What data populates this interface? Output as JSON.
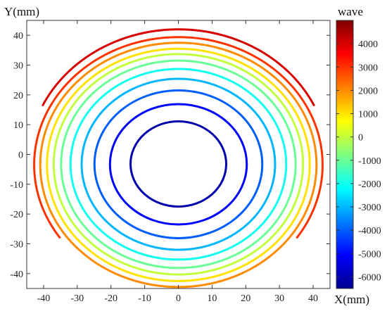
{
  "chart_data": {
    "type": "contour",
    "xlabel": "X(mm)",
    "ylabel": "Y(mm)",
    "xlim": [
      -45,
      45
    ],
    "ylim": [
      -45,
      45
    ],
    "xticks": [
      -40,
      -30,
      -20,
      -10,
      0,
      10,
      20,
      30,
      40
    ],
    "yticks": [
      40,
      30,
      20,
      10,
      0,
      -10,
      -20,
      -30,
      -40
    ],
    "grid": false,
    "colorbar": {
      "title": "wave",
      "range": [
        -6500,
        5000
      ],
      "ticks": [
        4000,
        3000,
        2000,
        1000,
        0,
        -1000,
        -2000,
        -3000,
        -4000,
        -5000,
        -6000
      ],
      "colormap": "jet"
    },
    "contours": [
      {
        "level": -6000,
        "center": [
          0,
          -3.2
        ],
        "rx": 14.2,
        "ry": 14.3,
        "arc": "full"
      },
      {
        "level": -5000,
        "center": [
          0,
          -3.3
        ],
        "rx": 20.3,
        "ry": 20.2,
        "arc": "full"
      },
      {
        "level": -4000,
        "center": [
          0,
          -3.3
        ],
        "rx": 24.9,
        "ry": 24.8,
        "arc": "full"
      },
      {
        "level": -3000,
        "center": [
          0,
          -3.3
        ],
        "rx": 28.7,
        "ry": 28.7,
        "arc": "full"
      },
      {
        "level": -2000,
        "center": [
          0,
          -3.3
        ],
        "rx": 32.0,
        "ry": 32.0,
        "arc": "full"
      },
      {
        "level": -1000,
        "center": [
          0,
          -3.3
        ],
        "rx": 34.8,
        "ry": 34.8,
        "arc": "full"
      },
      {
        "level": 0,
        "center": [
          0,
          -3.3
        ],
        "rx": 37.0,
        "ry": 37.0,
        "arc": "full"
      },
      {
        "level": 1000,
        "center": [
          0,
          -3.5
        ],
        "rx": 39.0,
        "ry": 39.0,
        "arc": "full"
      },
      {
        "level": 2000,
        "center": [
          0,
          -3.5
        ],
        "rx": 41.0,
        "ry": 41.0,
        "arc": "full"
      },
      {
        "level": 3000,
        "center": [
          0,
          -3.5
        ],
        "rx": 42.8,
        "ry": 42.9,
        "arc": [
          -35,
          215
        ]
      },
      {
        "level": 4000,
        "center": [
          0,
          -2.5
        ],
        "rx": 44.5,
        "ry": 44.5,
        "arc": [
          25,
          155
        ]
      }
    ]
  }
}
